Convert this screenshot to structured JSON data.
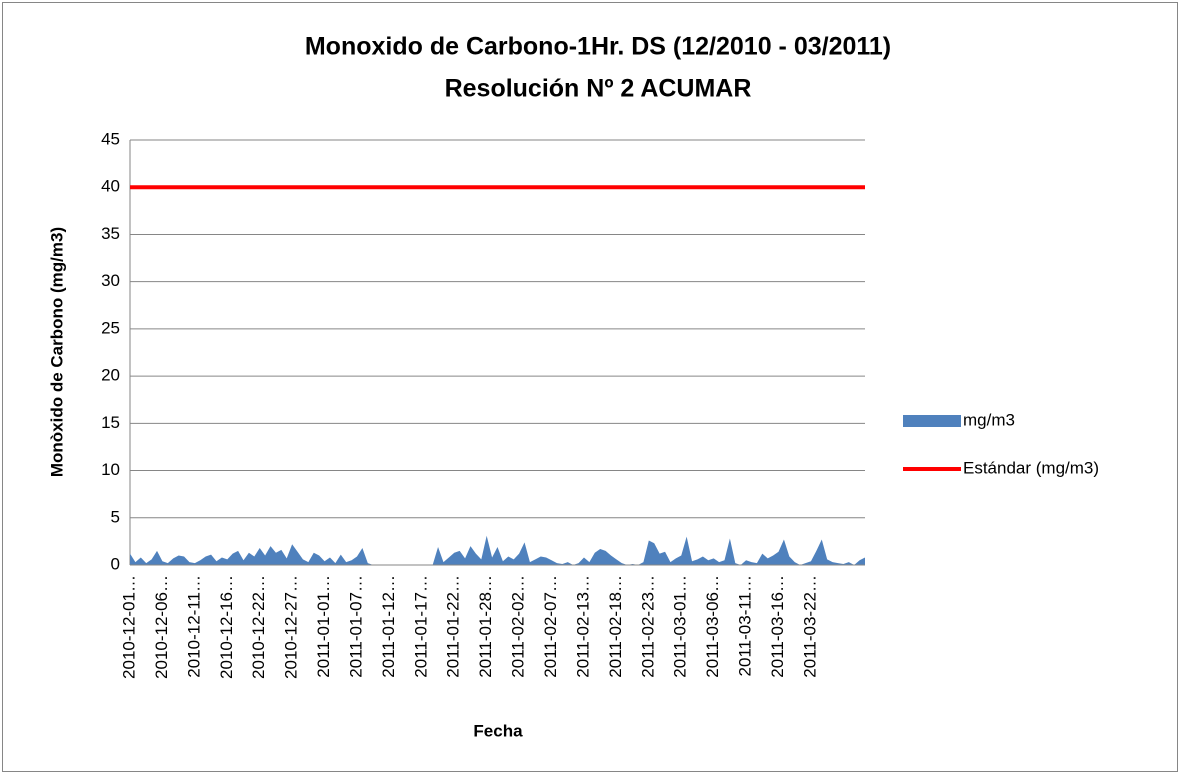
{
  "chart_data": {
    "type": "area",
    "title": "Monoxido de Carbono-1Hr. DS (12/2010 - 03/2011)",
    "subtitle": "Resolución Nº 2 ACUMAR",
    "x_label": "Fecha",
    "y_label": "Monòxido de Carbono (mg/m3)",
    "ylim": [
      0,
      45
    ],
    "yticks": [
      0,
      5,
      10,
      15,
      20,
      25,
      30,
      35,
      40,
      45
    ],
    "grid": true,
    "legend": "right",
    "categories": [
      "2010-12-01…",
      null,
      null,
      null,
      null,
      null,
      "2010-12-06…",
      null,
      null,
      null,
      null,
      null,
      "2010-12-11…",
      null,
      null,
      null,
      null,
      null,
      "2010-12-16…",
      null,
      null,
      null,
      null,
      null,
      "2010-12-22…",
      null,
      null,
      null,
      null,
      null,
      "2010-12-27…",
      null,
      null,
      null,
      null,
      null,
      "2011-01-01…",
      null,
      null,
      null,
      null,
      null,
      "2011-01-07…",
      null,
      null,
      null,
      null,
      null,
      "2011-01-12…",
      null,
      null,
      null,
      null,
      null,
      "2011-01-17…",
      null,
      null,
      null,
      null,
      null,
      "2011-01-22…",
      null,
      null,
      null,
      null,
      null,
      "2011-01-28…",
      null,
      null,
      null,
      null,
      null,
      "2011-02-02…",
      null,
      null,
      null,
      null,
      null,
      "2011-02-07…",
      null,
      null,
      null,
      null,
      null,
      "2011-02-13…",
      null,
      null,
      null,
      null,
      null,
      "2011-02-18…",
      null,
      null,
      null,
      null,
      null,
      "2011-02-23…",
      null,
      null,
      null,
      null,
      null,
      "2011-03-01…",
      null,
      null,
      null,
      null,
      null,
      "2011-03-06…",
      null,
      null,
      null,
      null,
      null,
      "2011-03-11…",
      null,
      null,
      null,
      null,
      null,
      "2011-03-16…",
      null,
      null,
      null,
      null,
      null,
      "2011-03-22…",
      null,
      null,
      null,
      null,
      null,
      null,
      null,
      null,
      null,
      null
    ],
    "series": [
      {
        "name": "mg/m3",
        "type": "area",
        "color": "#4f81bd",
        "values": [
          1.2,
          0.3,
          0.8,
          0.2,
          0.6,
          1.5,
          0.4,
          0.2,
          0.7,
          1.0,
          0.9,
          0.3,
          0.2,
          0.5,
          0.9,
          1.1,
          0.4,
          0.8,
          0.6,
          1.2,
          1.5,
          0.5,
          1.3,
          0.9,
          1.8,
          1.0,
          2.0,
          1.3,
          1.6,
          0.7,
          2.2,
          1.4,
          0.6,
          0.3,
          1.3,
          1.0,
          0.4,
          0.8,
          0.2,
          1.1,
          0.3,
          0.5,
          0.9,
          1.8,
          0.2,
          0,
          0,
          0,
          0,
          0,
          0,
          0,
          0,
          0,
          0,
          0,
          0,
          1.9,
          0.3,
          0.8,
          1.3,
          1.5,
          0.7,
          2.0,
          1.2,
          0.6,
          3.1,
          0.8,
          1.9,
          0.4,
          0.9,
          0.6,
          1.2,
          2.4,
          0.3,
          0.6,
          0.9,
          0.8,
          0.5,
          0.2,
          0.1,
          0.3,
          0,
          0.2,
          0.8,
          0.3,
          1.3,
          1.7,
          1.5,
          1.0,
          0.6,
          0.2,
          0,
          0.1,
          0,
          0.3,
          2.6,
          2.3,
          1.2,
          1.4,
          0.3,
          0.7,
          1.0,
          3.0,
          0.4,
          0.6,
          0.9,
          0.5,
          0.7,
          0.3,
          0.5,
          2.8,
          0.2,
          0,
          0.5,
          0.3,
          0.2,
          1.2,
          0.7,
          1.0,
          1.4,
          2.7,
          0.9,
          0.3,
          0,
          0.2,
          0.4,
          1.5,
          2.7,
          0.6,
          0.3,
          0.2,
          0.1,
          0.3,
          0,
          0.5,
          0.8
        ]
      },
      {
        "name": "Estándar (mg/m3)",
        "type": "line",
        "color": "#ff0000",
        "values": [
          40,
          40,
          40,
          40,
          40,
          40,
          40,
          40,
          40,
          40,
          40,
          40,
          40,
          40,
          40,
          40,
          40,
          40,
          40,
          40,
          40,
          40,
          40,
          40,
          40,
          40,
          40,
          40,
          40,
          40,
          40,
          40,
          40,
          40,
          40,
          40,
          40,
          40,
          40,
          40,
          40,
          40,
          40,
          40,
          40,
          40,
          40,
          40,
          40,
          40,
          40,
          40,
          40,
          40,
          40,
          40,
          40,
          40,
          40,
          40,
          40,
          40,
          40,
          40,
          40,
          40,
          40,
          40,
          40,
          40,
          40,
          40,
          40,
          40,
          40,
          40,
          40,
          40,
          40,
          40,
          40,
          40,
          40,
          40,
          40,
          40,
          40,
          40,
          40,
          40,
          40,
          40,
          40,
          40,
          40,
          40,
          40,
          40,
          40,
          40,
          40,
          40,
          40,
          40,
          40,
          40,
          40,
          40,
          40,
          40,
          40,
          40,
          40,
          40,
          40,
          40,
          40,
          40,
          40,
          40,
          40,
          40,
          40,
          40,
          40,
          40,
          40,
          40,
          40,
          40,
          40,
          40,
          40,
          40,
          40,
          40,
          40
        ]
      }
    ]
  }
}
